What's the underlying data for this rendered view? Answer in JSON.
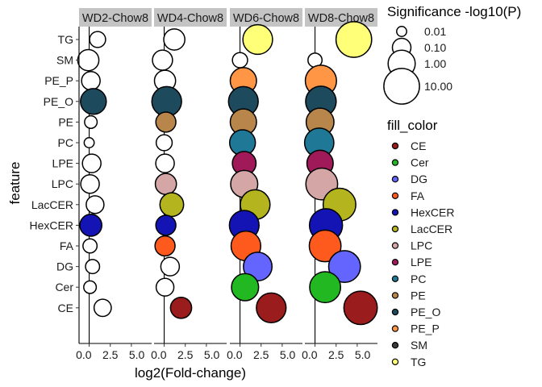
{
  "chart_data": {
    "type": "scatter",
    "xlabel": "log2(Fold-change)",
    "ylabel": "feature",
    "x_ticks": [
      "0.0",
      "2.5",
      "5.0"
    ],
    "xlim": [
      -1.2,
      7.4
    ],
    "panels": [
      "WD2-Chow8",
      "WD4-Chow8",
      "WD6-Chow8",
      "WD8-Chow8"
    ],
    "features": [
      "TG",
      "SM",
      "PE_P",
      "PE_O",
      "PE",
      "PC",
      "LPE",
      "LPC",
      "LacCER",
      "HexCER",
      "FA",
      "DG",
      "Cer",
      "CE"
    ],
    "fill_colors": {
      "CE": "#9B1C1C",
      "Cer": "#22B822",
      "DG": "#6464FF",
      "FA": "#FF5A1E",
      "HexCER": "#1414B4",
      "LacCER": "#B4B41E",
      "LPC": "#D4A6A6",
      "LPE": "#A01A5A",
      "PC": "#1E7896",
      "PE": "#B8864A",
      "PE_O": "#1E4A5E",
      "PE_P": "#FF9646",
      "SM": "#3A3A3A",
      "TG": "#FFFF78"
    },
    "points": [
      {
        "panel": 0,
        "feature": "TG",
        "x": 1.0,
        "p": 0.05,
        "fill": "white"
      },
      {
        "panel": 0,
        "feature": "SM",
        "x": -0.1,
        "p": 0.2,
        "fill": "white"
      },
      {
        "panel": 0,
        "feature": "PE_P",
        "x": 0.2,
        "p": 0.1,
        "fill": "white"
      },
      {
        "panel": 0,
        "feature": "PE_O",
        "x": 0.5,
        "p": 0.7,
        "fill": "PE_O"
      },
      {
        "panel": 0,
        "feature": "PE",
        "x": 0.2,
        "p": 0.02,
        "fill": "white"
      },
      {
        "panel": 0,
        "feature": "PC",
        "x": 0.0,
        "p": 0.01,
        "fill": "white"
      },
      {
        "panel": 0,
        "feature": "LPE",
        "x": 0.3,
        "p": 0.1,
        "fill": "white"
      },
      {
        "panel": 0,
        "feature": "LPC",
        "x": 0.1,
        "p": 0.1,
        "fill": "white"
      },
      {
        "panel": 0,
        "feature": "LacCER",
        "x": 0.7,
        "p": 0.08,
        "fill": "white"
      },
      {
        "panel": 0,
        "feature": "HexCER",
        "x": 0.2,
        "p": 0.25,
        "fill": "HexCER"
      },
      {
        "panel": 0,
        "feature": "FA",
        "x": 0.1,
        "p": 0.03,
        "fill": "white"
      },
      {
        "panel": 0,
        "feature": "DG",
        "x": 0.4,
        "p": 0.03,
        "fill": "white"
      },
      {
        "panel": 0,
        "feature": "Cer",
        "x": 0.1,
        "p": 0.02,
        "fill": "white"
      },
      {
        "panel": 0,
        "feature": "CE",
        "x": 1.6,
        "p": 0.07,
        "fill": "white"
      },
      {
        "panel": 1,
        "feature": "TG",
        "x": 1.2,
        "p": 0.2,
        "fill": "white"
      },
      {
        "panel": 1,
        "feature": "SM",
        "x": -0.2,
        "p": 0.15,
        "fill": "white"
      },
      {
        "panel": 1,
        "feature": "PE_P",
        "x": 0.1,
        "p": 0.2,
        "fill": "white"
      },
      {
        "panel": 1,
        "feature": "PE_O",
        "x": 0.3,
        "p": 2.0,
        "fill": "PE_O"
      },
      {
        "panel": 1,
        "feature": "PE",
        "x": 0.2,
        "p": 0.15,
        "fill": "PE"
      },
      {
        "panel": 1,
        "feature": "PC",
        "x": 0.0,
        "p": 0.05,
        "fill": "white"
      },
      {
        "panel": 1,
        "feature": "LPE",
        "x": 0.1,
        "p": 0.1,
        "fill": "white"
      },
      {
        "panel": 1,
        "feature": "LPC",
        "x": 0.2,
        "p": 0.2,
        "fill": "LPC"
      },
      {
        "panel": 1,
        "feature": "LacCER",
        "x": 0.9,
        "p": 0.4,
        "fill": "LacCER"
      },
      {
        "panel": 1,
        "feature": "HexCER",
        "x": 0.2,
        "p": 0.15,
        "fill": "HexCER"
      },
      {
        "panel": 1,
        "feature": "FA",
        "x": 0.1,
        "p": 0.15,
        "fill": "FA"
      },
      {
        "panel": 1,
        "feature": "DG",
        "x": 0.7,
        "p": 0.1,
        "fill": "white"
      },
      {
        "panel": 1,
        "feature": "Cer",
        "x": 0.1,
        "p": 0.08,
        "fill": "white"
      },
      {
        "panel": 1,
        "feature": "CE",
        "x": 2.0,
        "p": 0.2,
        "fill": "CE"
      },
      {
        "panel": 2,
        "feature": "TG",
        "x": 2.1,
        "p": 2.0,
        "fill": "TG"
      },
      {
        "panel": 2,
        "feature": "SM",
        "x": 0.0,
        "p": 0.04,
        "fill": "white"
      },
      {
        "panel": 2,
        "feature": "PE_P",
        "x": 0.4,
        "p": 0.8,
        "fill": "PE_P"
      },
      {
        "panel": 2,
        "feature": "PE_O",
        "x": 0.4,
        "p": 2.0,
        "fill": "PE_O"
      },
      {
        "panel": 2,
        "feature": "PE",
        "x": 0.4,
        "p": 0.8,
        "fill": "PE"
      },
      {
        "panel": 2,
        "feature": "PC",
        "x": 0.3,
        "p": 0.7,
        "fill": "PC"
      },
      {
        "panel": 2,
        "feature": "LPE",
        "x": 0.5,
        "p": 0.4,
        "fill": "LPE"
      },
      {
        "panel": 2,
        "feature": "LPC",
        "x": 0.5,
        "p": 1.0,
        "fill": "LPC"
      },
      {
        "panel": 2,
        "feature": "LacCER",
        "x": 1.8,
        "p": 2.0,
        "fill": "LacCER"
      },
      {
        "panel": 2,
        "feature": "HexCER",
        "x": 0.5,
        "p": 2.0,
        "fill": "HexCER"
      },
      {
        "panel": 2,
        "feature": "FA",
        "x": 0.7,
        "p": 2.0,
        "fill": "FA"
      },
      {
        "panel": 2,
        "feature": "DG",
        "x": 2.1,
        "p": 1.5,
        "fill": "DG"
      },
      {
        "panel": 2,
        "feature": "Cer",
        "x": 0.6,
        "p": 1.0,
        "fill": "Cer"
      },
      {
        "panel": 2,
        "feature": "CE",
        "x": 3.7,
        "p": 2.0,
        "fill": "CE"
      },
      {
        "panel": 3,
        "feature": "TG",
        "x": 4.6,
        "p": 10.0,
        "fill": "TG"
      },
      {
        "panel": 3,
        "feature": "SM",
        "x": 0.0,
        "p": 0.03,
        "fill": "white"
      },
      {
        "panel": 3,
        "feature": "PE_P",
        "x": 0.7,
        "p": 3.0,
        "fill": "PE_P"
      },
      {
        "panel": 3,
        "feature": "PE_O",
        "x": 0.7,
        "p": 2.5,
        "fill": "PE_O"
      },
      {
        "panel": 3,
        "feature": "PE",
        "x": 0.6,
        "p": 1.2,
        "fill": "PE"
      },
      {
        "panel": 3,
        "feature": "PC",
        "x": 0.5,
        "p": 1.8,
        "fill": "PC"
      },
      {
        "panel": 3,
        "feature": "LPE",
        "x": 0.6,
        "p": 0.8,
        "fill": "LPE"
      },
      {
        "panel": 3,
        "feature": "LPC",
        "x": 0.8,
        "p": 3.5,
        "fill": "LPC"
      },
      {
        "panel": 3,
        "feature": "LacCER",
        "x": 2.9,
        "p": 4.5,
        "fill": "LacCER"
      },
      {
        "panel": 3,
        "feature": "HexCER",
        "x": 1.3,
        "p": 5.0,
        "fill": "HexCER"
      },
      {
        "panel": 3,
        "feature": "FA",
        "x": 1.2,
        "p": 3.5,
        "fill": "FA"
      },
      {
        "panel": 3,
        "feature": "DG",
        "x": 3.5,
        "p": 3.5,
        "fill": "DG"
      },
      {
        "panel": 3,
        "feature": "Cer",
        "x": 1.2,
        "p": 2.8,
        "fill": "Cer"
      },
      {
        "panel": 3,
        "feature": "CE",
        "x": 5.4,
        "p": 5.5,
        "fill": "CE"
      }
    ],
    "legend_size": {
      "title": "Significance -log10(P)",
      "entries": [
        {
          "label": "0.01",
          "p": 0.01
        },
        {
          "label": "0.10",
          "p": 0.1
        },
        {
          "label": "1.00",
          "p": 1.0
        },
        {
          "label": "10.00",
          "p": 10.0
        }
      ]
    },
    "legend_fill": {
      "title": "fill_color",
      "entries": [
        "CE",
        "Cer",
        "DG",
        "FA",
        "HexCER",
        "LacCER",
        "LPC",
        "LPE",
        "PC",
        "PE",
        "PE_O",
        "PE_P",
        "SM",
        "TG"
      ]
    },
    "grid": false,
    "legend_position": "right"
  }
}
